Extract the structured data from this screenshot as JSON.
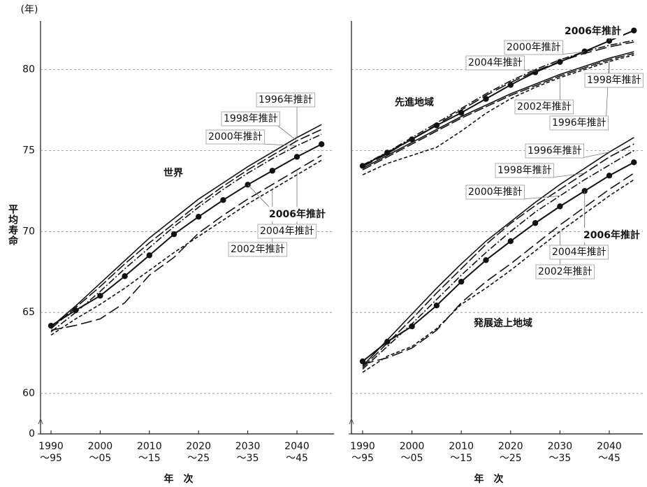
{
  "chart_data": [
    {
      "type": "line",
      "y_unit": "(年)",
      "y_label": "平均寿命",
      "x_label": "年　次",
      "annotations": [
        "世界"
      ],
      "categories": [
        "1990\n～95",
        null,
        "2000\n～05",
        null,
        "2010\n～15",
        null,
        "2020\n～25",
        null,
        "2030\n～35",
        null,
        "2040\n～45",
        null
      ],
      "ylim": [
        57.5,
        83
      ],
      "yticks": [
        0,
        60,
        65,
        70,
        75,
        80
      ],
      "axis_break": true,
      "ytick_labels": true,
      "grid": true,
      "series": [
        {
          "name": "1996年推計",
          "color": "#111111",
          "dash": "none",
          "marker": false,
          "values": [
            64.1,
            65.4,
            66.8,
            68.2,
            69.6,
            70.8,
            72.0,
            73.0,
            74.0,
            74.9,
            75.8,
            76.6
          ]
        },
        {
          "name": "1998年推計",
          "color": "#111111",
          "dash": "14 4",
          "marker": false,
          "values": [
            64.0,
            65.3,
            66.6,
            68.0,
            69.3,
            70.5,
            71.7,
            72.8,
            73.8,
            74.7,
            75.6,
            76.3
          ]
        },
        {
          "name": "2000年推計",
          "color": "#111111",
          "dash": "10 3 2 3",
          "marker": false,
          "values": [
            63.8,
            65.0,
            66.3,
            67.7,
            69.0,
            70.3,
            71.5,
            72.6,
            73.6,
            74.5,
            75.3,
            76.0
          ]
        },
        {
          "name": "2002年推計",
          "color": "#111111",
          "dash": "5 3",
          "marker": false,
          "values": [
            63.6,
            64.6,
            65.5,
            66.5,
            67.6,
            68.7,
            69.7,
            70.7,
            71.7,
            72.6,
            73.5,
            74.4
          ]
        },
        {
          "name": "2004年推計",
          "color": "#111111",
          "dash": "16 6",
          "marker": false,
          "values": [
            63.9,
            64.2,
            64.6,
            65.6,
            67.3,
            68.4,
            69.9,
            71.0,
            72.0,
            72.9,
            73.8,
            74.7
          ]
        },
        {
          "name": "2006年推計",
          "color": "#111111",
          "dash": "none",
          "marker": true,
          "values": [
            64.18,
            65.13,
            66.03,
            67.24,
            68.53,
            69.83,
            70.91,
            71.94,
            72.89,
            73.75,
            74.61,
            75.39
          ]
        }
      ]
    },
    {
      "type": "line",
      "x_label": "年　次",
      "annotations": [
        "先進地域",
        "発展途上地域"
      ],
      "categories": [
        "1990\n～95",
        null,
        "2000\n～05",
        null,
        "2010\n～15",
        null,
        "2020\n～25",
        null,
        "2030\n～35",
        null,
        "2040\n～45",
        null
      ],
      "ylim": [
        57.5,
        83
      ],
      "yticks": [
        0,
        60,
        65,
        70,
        75,
        80
      ],
      "axis_break": true,
      "ytick_labels": false,
      "grid": true,
      "series": [
        {
          "name": "1996年推計",
          "color": "#111111",
          "dash": "none",
          "marker": false,
          "values": [
            73.9,
            74.7,
            75.5,
            76.3,
            77.1,
            77.8,
            78.5,
            79.1,
            79.7,
            80.2,
            80.7,
            81.1
          ]
        },
        {
          "name": "1998年推計",
          "color": "#111111",
          "dash": "14 4",
          "marker": false,
          "values": [
            73.8,
            74.6,
            75.4,
            76.2,
            77.0,
            77.7,
            78.4,
            79.0,
            79.6,
            80.1,
            80.6,
            81.0
          ]
        },
        {
          "name": "2000年推計",
          "color": "#111111",
          "dash": "10 3 2 3",
          "marker": false,
          "values": [
            74.1,
            74.9,
            75.8,
            76.7,
            77.6,
            78.5,
            79.3,
            80.0,
            80.6,
            81.1,
            81.5,
            81.8
          ]
        },
        {
          "name": "2002年推計",
          "color": "#111111",
          "dash": "5 3",
          "marker": false,
          "values": [
            73.5,
            74.2,
            74.7,
            75.2,
            76.2,
            77.3,
            78.2,
            78.9,
            79.5,
            80.0,
            80.5,
            80.9
          ]
        },
        {
          "name": "2004年推計",
          "color": "#111111",
          "dash": "16 6",
          "marker": false,
          "values": [
            74.0,
            74.8,
            75.7,
            76.6,
            77.5,
            78.4,
            79.2,
            79.9,
            80.5,
            81.0,
            81.4,
            81.7
          ]
        },
        {
          "name": "2006年推計",
          "color": "#111111",
          "dash": "none",
          "marker": true,
          "values": [
            74.05,
            74.87,
            75.69,
            76.55,
            77.33,
            78.19,
            79.05,
            79.83,
            80.47,
            81.12,
            81.77,
            82.41
          ]
        },
        {
          "name": "1996年推計",
          "color": "#111111",
          "dash": "none",
          "marker": false,
          "values": [
            61.7,
            63.3,
            64.9,
            66.5,
            68.0,
            69.4,
            70.6,
            71.8,
            72.9,
            73.9,
            74.9,
            75.8
          ]
        },
        {
          "name": "1998年推計",
          "color": "#111111",
          "dash": "14 4",
          "marker": false,
          "values": [
            61.6,
            63.1,
            64.6,
            66.2,
            67.7,
            69.2,
            70.5,
            71.6,
            72.6,
            73.6,
            74.6,
            75.4
          ]
        },
        {
          "name": "2000年推計",
          "color": "#111111",
          "dash": "10 3 2 3",
          "marker": false,
          "values": [
            61.5,
            62.9,
            64.3,
            65.8,
            67.3,
            68.7,
            70.0,
            71.2,
            72.2,
            73.2,
            74.1,
            75.0
          ]
        },
        {
          "name": "2002年推計",
          "color": "#111111",
          "dash": "5 3",
          "marker": false,
          "values": [
            61.3,
            62.3,
            62.9,
            64.0,
            65.5,
            66.5,
            67.6,
            68.8,
            70.0,
            71.1,
            72.2,
            73.2
          ]
        },
        {
          "name": "2004年推計",
          "color": "#111111",
          "dash": "16 6",
          "marker": false,
          "values": [
            61.8,
            62.2,
            62.8,
            63.9,
            65.6,
            66.9,
            68.0,
            69.2,
            70.4,
            71.5,
            72.6,
            73.6
          ]
        },
        {
          "name": "2006年推計",
          "color": "#111111",
          "dash": "none",
          "marker": true,
          "values": [
            61.98,
            63.19,
            64.14,
            65.43,
            66.9,
            68.23,
            69.4,
            70.52,
            71.55,
            72.5,
            73.45,
            74.27
          ]
        }
      ]
    }
  ]
}
